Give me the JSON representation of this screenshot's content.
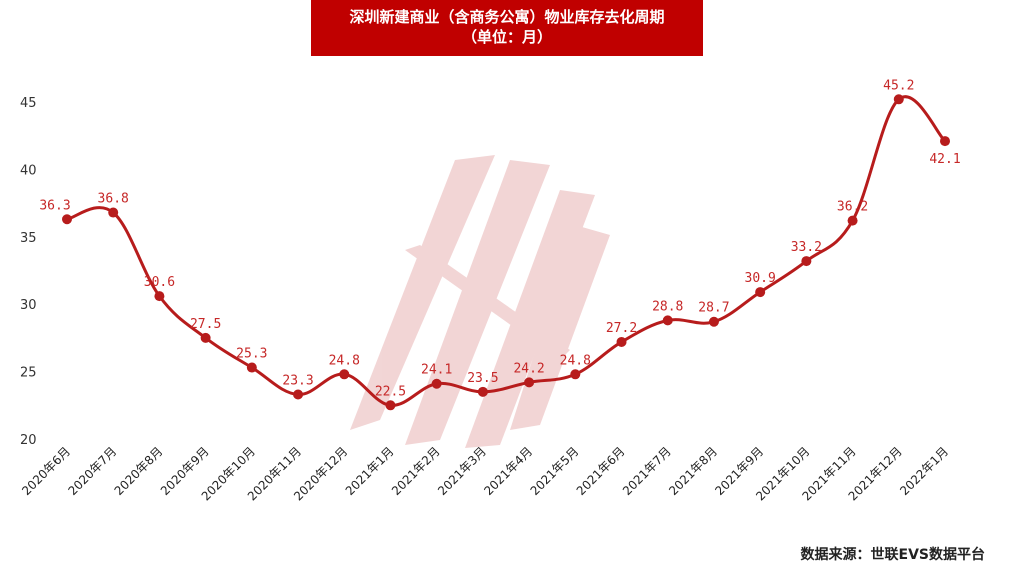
{
  "title": {
    "line1": "深圳新建商业（含商务公寓）物业库存去化周期",
    "line2": "（单位：月）"
  },
  "source": "数据来源：世联EVS数据平台",
  "colors": {
    "accent": "#c00000",
    "series": "#b71c1c",
    "label": "#c62828",
    "watermark": "#e8b4b4"
  },
  "chart_data": {
    "type": "line",
    "title": "深圳新建商业（含商务公寓）物业库存去化周期（单位：月）",
    "xlabel": "",
    "ylabel": "",
    "ylim": [
      20,
      45
    ],
    "yticks": [
      20,
      25,
      30,
      35,
      40,
      45
    ],
    "grid": false,
    "legend": "none",
    "categories": [
      "2020年6月",
      "2020年7月",
      "2020年8月",
      "2020年9月",
      "2020年10月",
      "2020年11月",
      "2020年12月",
      "2021年1月",
      "2021年2月",
      "2021年3月",
      "2021年4月",
      "2021年5月",
      "2021年6月",
      "2021年7月",
      "2021年8月",
      "2021年9月",
      "2021年10月",
      "2021年11月",
      "2021年12月",
      "2022年1月"
    ],
    "values": [
      36.3,
      36.8,
      30.6,
      27.5,
      25.3,
      23.3,
      24.8,
      22.5,
      24.1,
      23.5,
      24.2,
      24.8,
      27.2,
      28.8,
      28.7,
      30.9,
      33.2,
      36.2,
      45.2,
      42.1
    ],
    "labels": [
      "36.3",
      "36.8",
      "30.6",
      "27.5",
      "25.3",
      "23.3",
      "24.8",
      "22.5",
      "24.1",
      "23.5",
      "24.2",
      "24.8",
      "27.2",
      "28.8",
      "28.7",
      "30.9",
      "33.2",
      "36.2",
      "45.2",
      "42.1"
    ]
  }
}
